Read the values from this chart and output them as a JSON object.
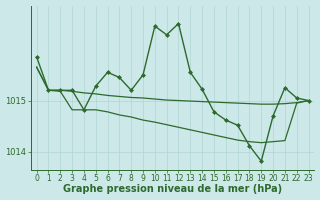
{
  "xlabel": "Graphe pression niveau de la mer (hPa)",
  "background_color": "#cce8e8",
  "grid_color": "#b0d4d4",
  "line_color": "#2d6a2d",
  "ylim": [
    1013.65,
    1016.85
  ],
  "xlim": [
    -0.5,
    23.5
  ],
  "yticks": [
    1014,
    1015
  ],
  "xticks": [
    0,
    1,
    2,
    3,
    4,
    5,
    6,
    7,
    8,
    9,
    10,
    11,
    12,
    13,
    14,
    15,
    16,
    17,
    18,
    19,
    20,
    21,
    22,
    23
  ],
  "series": [
    {
      "x": [
        0,
        1,
        2,
        3,
        4,
        5,
        6,
        7,
        8,
        9,
        10,
        11,
        12,
        13,
        14,
        15,
        16,
        17,
        18,
        19,
        20,
        21,
        22,
        23
      ],
      "y": [
        1015.65,
        1015.2,
        1015.2,
        1015.18,
        1015.15,
        1015.13,
        1015.1,
        1015.08,
        1015.06,
        1015.05,
        1015.03,
        1015.01,
        1015.0,
        1014.99,
        1014.98,
        1014.97,
        1014.96,
        1014.95,
        1014.94,
        1014.93,
        1014.93,
        1014.94,
        1014.96,
        1015.0
      ],
      "marker": null,
      "linewidth": 0.9
    },
    {
      "x": [
        0,
        1,
        2,
        3,
        4,
        5,
        6,
        7,
        8,
        9,
        10,
        11,
        12,
        13,
        14,
        15,
        16,
        17,
        18,
        19,
        20,
        21,
        22,
        23
      ],
      "y": [
        1015.65,
        1015.2,
        1015.18,
        1014.82,
        1014.82,
        1014.82,
        1014.78,
        1014.72,
        1014.68,
        1014.62,
        1014.58,
        1014.53,
        1014.48,
        1014.43,
        1014.38,
        1014.33,
        1014.28,
        1014.23,
        1014.2,
        1014.18,
        1014.2,
        1014.22,
        1014.95,
        1015.0
      ],
      "marker": null,
      "linewidth": 0.9
    },
    {
      "x": [
        0,
        1,
        2,
        3,
        4,
        5,
        6,
        7,
        8,
        9,
        10,
        11,
        12,
        13,
        14,
        15,
        16,
        17,
        18,
        19,
        20,
        21,
        22,
        23
      ],
      "y": [
        1015.85,
        1015.2,
        1015.2,
        1015.2,
        1014.82,
        1015.28,
        1015.55,
        1015.45,
        1015.2,
        1015.5,
        1016.45,
        1016.28,
        1016.5,
        1015.55,
        1015.22,
        1014.78,
        1014.62,
        1014.52,
        1014.12,
        1013.82,
        1014.7,
        1015.25,
        1015.05,
        1015.0
      ],
      "marker": "D",
      "markersize": 2.0,
      "linewidth": 1.0
    }
  ],
  "font_color": "#2d6a2d",
  "tick_fontsize": 5.5,
  "xlabel_fontsize": 7.0
}
